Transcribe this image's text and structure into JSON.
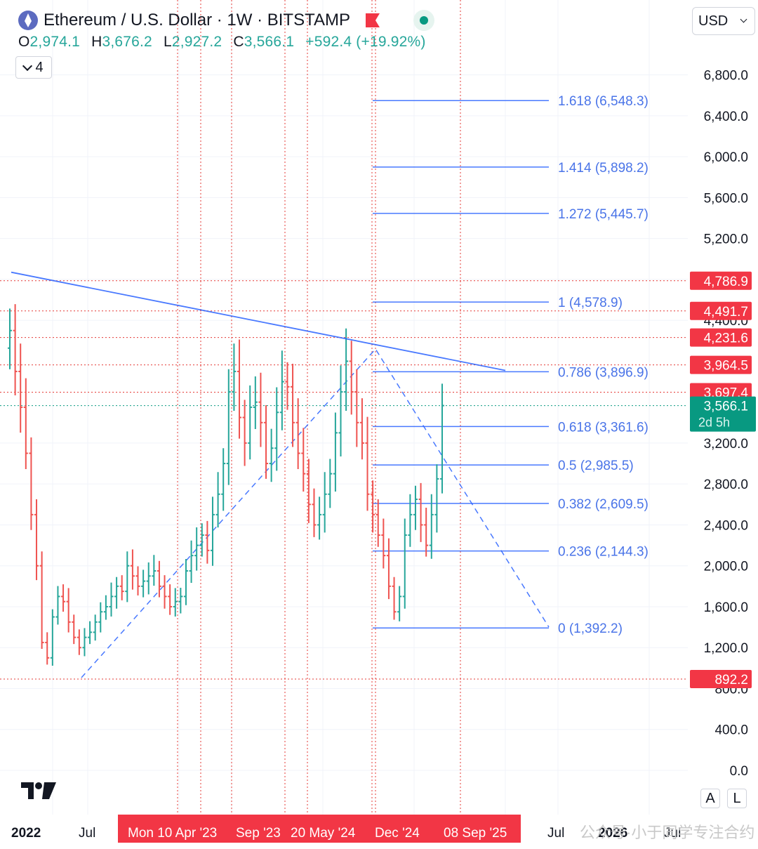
{
  "header": {
    "title": "Ethereum / U.S. Dollar · 1W · BITSTAMP",
    "ohlc": [
      {
        "key": "O",
        "value": "2,974.1"
      },
      {
        "key": "H",
        "value": "3,676.2"
      },
      {
        "key": "L",
        "value": "2,927.2"
      },
      {
        "key": "C",
        "value": "3,566.1"
      }
    ],
    "change": "+592.4 (+19.92%)",
    "indicator_count": "4",
    "currency": "USD"
  },
  "controls": {
    "auto_label": "A",
    "log_label": "L"
  },
  "watermark": "公众号·小于同学专注合约",
  "chart_data": {
    "type": "ohlc",
    "y_ticks": [
      "6,800.0",
      "6,400.0",
      "6,000.0",
      "5,600.0",
      "5,200.0",
      "4,800.0",
      "4,400.0",
      "3,200.0",
      "2,800.0",
      "2,400.0",
      "2,000.0",
      "1,600.0",
      "1,200.0",
      "800.0",
      "400.0",
      "0.0"
    ],
    "y_tick_values": [
      6800,
      6400,
      6000,
      5600,
      5200,
      4800,
      4400,
      3200,
      2800,
      2400,
      2000,
      1600,
      1200,
      800,
      400,
      0
    ],
    "x_labels": [
      "2022",
      "Jul",
      "Jul",
      "2026",
      "Jul"
    ],
    "x_highlight_labels": [
      "Mon 10 Apr '23",
      "Sep '23",
      "20 May '24",
      "Dec '24",
      "08 Sep '25"
    ],
    "horizontal_levels": [
      {
        "value": 4786.9,
        "label": "4,786.9"
      },
      {
        "value": 4491.7,
        "label": "4,491.7"
      },
      {
        "value": 4231.6,
        "label": "4,231.6"
      },
      {
        "value": 3964.5,
        "label": "3,964.5"
      },
      {
        "value": 3697.4,
        "label": "3,697.4"
      },
      {
        "value": 892.2,
        "label": "892.2"
      }
    ],
    "last_price": {
      "value": 3566.1,
      "label": "3,566.1",
      "countdown": "2d 5h"
    },
    "fib_levels": [
      {
        "label": "1.618 (6,548.3)",
        "value": 6548.3
      },
      {
        "label": "1.414 (5,898.2)",
        "value": 5898.2
      },
      {
        "label": "1.272 (5,445.7)",
        "value": 5445.7
      },
      {
        "label": "1 (4,578.9)",
        "value": 4578.9
      },
      {
        "label": "0.786 (3,896.9)",
        "value": 3896.9
      },
      {
        "label": "0.618 (3,361.6)",
        "value": 3361.6
      },
      {
        "label": "0.5 (2,985.5)",
        "value": 2985.5
      },
      {
        "label": "0.382 (2,609.5)",
        "value": 2609.5
      },
      {
        "label": "0.236 (2,144.3)",
        "value": 2144.3
      },
      {
        "label": "0 (1,392.2)",
        "value": 1392.2
      }
    ],
    "trendline": {
      "from": 4870,
      "to": 3910
    },
    "closes": [
      4300,
      3900,
      3550,
      3100,
      2500,
      2000,
      1250,
      1100,
      1500,
      1700,
      1650,
      1450,
      1300,
      1200,
      1300,
      1350,
      1450,
      1550,
      1600,
      1700,
      1800,
      1750,
      2000,
      1900,
      1800,
      1850,
      1900,
      1950,
      1800,
      1700,
      1600,
      1650,
      1700,
      1950,
      2100,
      2200,
      2300,
      2150,
      2500,
      2700,
      3000,
      3700,
      3900,
      3450,
      3200,
      3550,
      3600,
      3400,
      3000,
      3150,
      3500,
      3800,
      3750,
      3400,
      3100,
      2900,
      2600,
      2400,
      2500,
      2700,
      2900,
      3300,
      3700,
      4000,
      3700,
      3400,
      3200,
      2700,
      2500,
      2300,
      2100,
      1800,
      1550,
      1700,
      2300,
      2500,
      2650,
      2400,
      2200,
      2500,
      2850,
      3566.1
    ]
  }
}
